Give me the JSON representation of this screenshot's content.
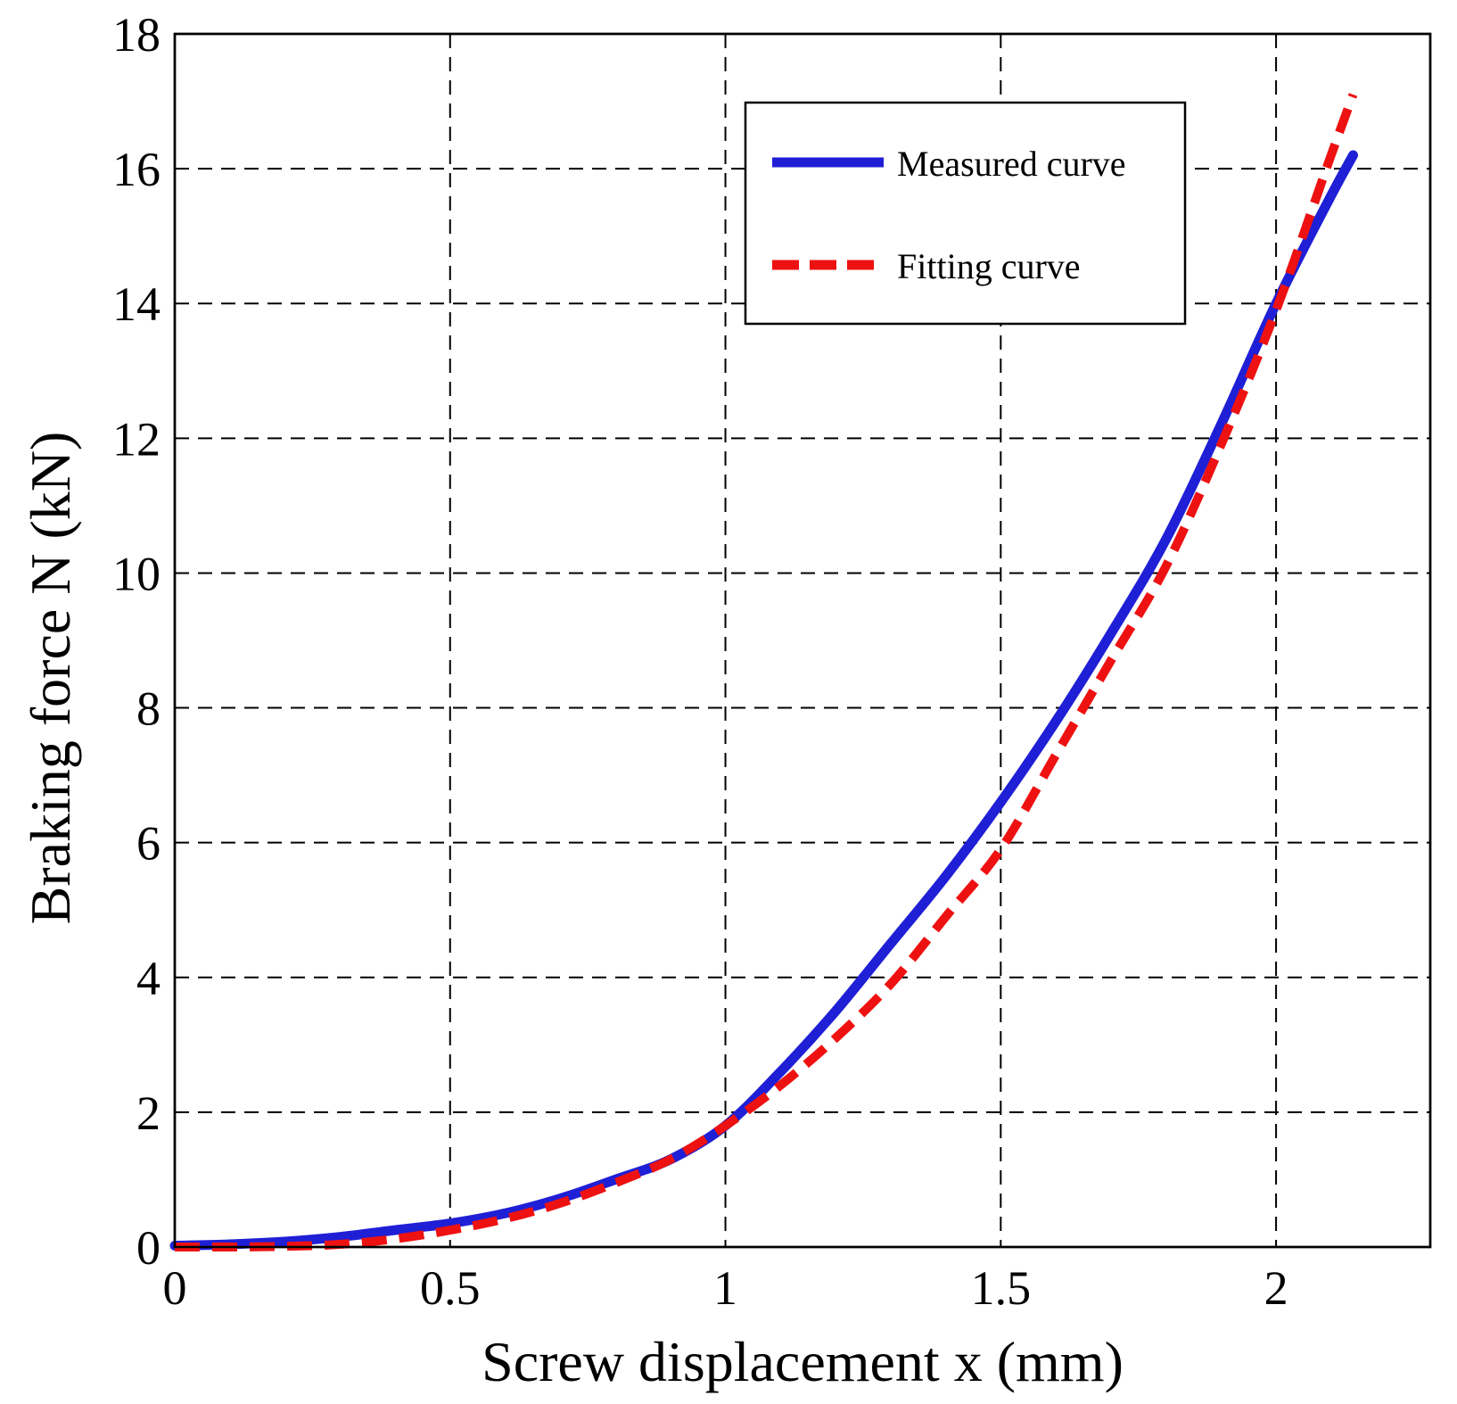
{
  "chart_data": {
    "type": "line",
    "title": "",
    "xlabel": "Screw displacement x (mm)",
    "ylabel": "Braking force N (kN)",
    "xlim": [
      0,
      2.28
    ],
    "ylim": [
      0,
      18
    ],
    "grid": true,
    "legend_position": "top-right",
    "x_ticks": [
      0,
      0.5,
      1,
      1.5,
      2
    ],
    "x_tick_labels": [
      "0",
      "0.5",
      "1",
      "1.5",
      "2"
    ],
    "y_ticks": [
      0,
      2,
      4,
      6,
      8,
      10,
      12,
      14,
      16,
      18
    ],
    "y_tick_labels": [
      "0",
      "2",
      "4",
      "6",
      "8",
      "10",
      "12",
      "14",
      "16",
      "18"
    ],
    "series": [
      {
        "name": "Measured curve",
        "color": "#1f1fd6",
        "style": "solid",
        "x": [
          0,
          0.1,
          0.2,
          0.3,
          0.4,
          0.5,
          0.6,
          0.7,
          0.8,
          0.9,
          1.0,
          1.1,
          1.2,
          1.3,
          1.4,
          1.5,
          1.6,
          1.7,
          1.8,
          1.9,
          2.0,
          2.1,
          2.14
        ],
        "y": [
          0.02,
          0.04,
          0.08,
          0.15,
          0.25,
          0.35,
          0.5,
          0.72,
          1.0,
          1.3,
          1.8,
          2.6,
          3.5,
          4.5,
          5.5,
          6.6,
          7.8,
          9.1,
          10.5,
          12.2,
          14.0,
          15.6,
          16.2
        ]
      },
      {
        "name": "Fitting curve",
        "color": "#ee1111",
        "style": "dashed",
        "x": [
          0,
          0.1,
          0.2,
          0.3,
          0.4,
          0.5,
          0.6,
          0.7,
          0.8,
          0.9,
          1.0,
          1.1,
          1.2,
          1.3,
          1.4,
          1.5,
          1.6,
          1.7,
          1.8,
          1.9,
          2.0,
          2.1,
          2.14
        ],
        "y": [
          0.0,
          0.0,
          0.01,
          0.04,
          0.12,
          0.25,
          0.42,
          0.65,
          0.95,
          1.3,
          1.8,
          2.4,
          3.1,
          3.9,
          4.9,
          5.9,
          7.3,
          8.7,
          10.1,
          11.9,
          13.9,
          16.2,
          17.1
        ]
      }
    ]
  }
}
